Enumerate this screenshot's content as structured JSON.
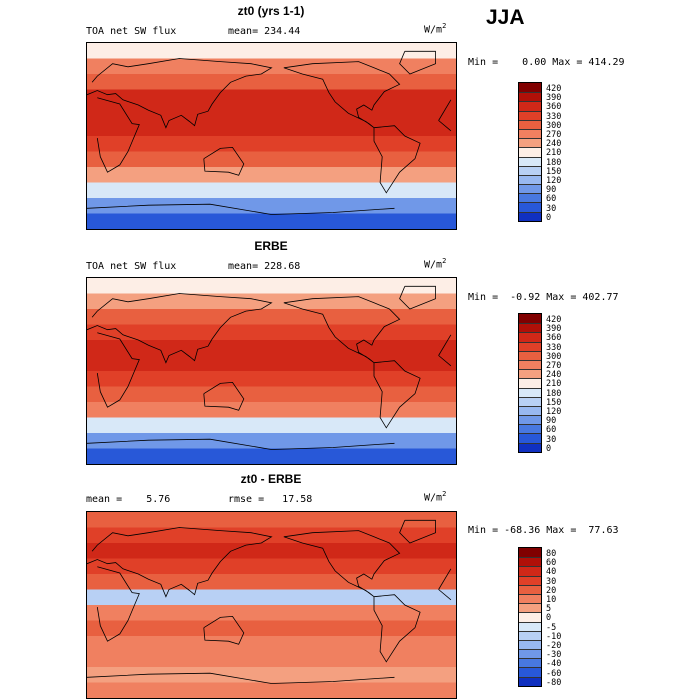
{
  "page_title": "JJA",
  "colors": {
    "scale_positive": [
      "#f8d8c8",
      "#f8c0a8",
      "#f4a080",
      "#f08060",
      "#e86040",
      "#e04028",
      "#d02818",
      "#b01008",
      "#800000"
    ],
    "scale_neutral": "#fdeee6",
    "scale_negative": [
      "#d8e8f8",
      "#b8d0f4",
      "#98b8f0",
      "#7098e8",
      "#4878e0",
      "#2858d8",
      "#1030c0",
      "#001098"
    ],
    "land_outline": "#000000"
  },
  "chart_data": [
    {
      "type": "heatmap",
      "title": "zt0 (yrs 1-1)",
      "variable": "TOA net SW flux",
      "stat_text": "mean= 234.44",
      "units": "W/m",
      "units_exp": "2",
      "min_max_text": "Min =    0.00 Max = 414.29",
      "levels": [
        "420",
        "390",
        "360",
        "330",
        "300",
        "270",
        "240",
        "210",
        "180",
        "150",
        "120",
        "90",
        "60",
        "30",
        "0"
      ],
      "bands": [
        {
          "lat": 90,
          "value": 200
        },
        {
          "lat": 75,
          "value": 240
        },
        {
          "lat": 60,
          "value": 290
        },
        {
          "lat": 45,
          "value": 330
        },
        {
          "lat": 30,
          "value": 350
        },
        {
          "lat": 15,
          "value": 330
        },
        {
          "lat": 0,
          "value": 300
        },
        {
          "lat": -15,
          "value": 280
        },
        {
          "lat": -30,
          "value": 230
        },
        {
          "lat": -45,
          "value": 150
        },
        {
          "lat": -60,
          "value": 60
        },
        {
          "lat": -75,
          "value": 10
        },
        {
          "lat": -90,
          "value": 0
        }
      ]
    },
    {
      "type": "heatmap",
      "title": "ERBE",
      "variable": "TOA net SW flux",
      "stat_text": "mean= 228.68",
      "units": "W/m",
      "units_exp": "2",
      "min_max_text": "Min =  -0.92 Max = 402.77",
      "levels": [
        "420",
        "390",
        "360",
        "330",
        "300",
        "270",
        "240",
        "210",
        "180",
        "150",
        "120",
        "90",
        "60",
        "30",
        "0"
      ],
      "bands": [
        {
          "lat": 90,
          "value": 190
        },
        {
          "lat": 75,
          "value": 230
        },
        {
          "lat": 60,
          "value": 280
        },
        {
          "lat": 45,
          "value": 320
        },
        {
          "lat": 30,
          "value": 340
        },
        {
          "lat": 15,
          "value": 345
        },
        {
          "lat": 0,
          "value": 310
        },
        {
          "lat": -15,
          "value": 290
        },
        {
          "lat": -30,
          "value": 240
        },
        {
          "lat": -45,
          "value": 160
        },
        {
          "lat": -60,
          "value": 70
        },
        {
          "lat": -75,
          "value": 15
        },
        {
          "lat": -90,
          "value": 0
        }
      ]
    },
    {
      "type": "heatmap",
      "title": "zt0 - ERBE",
      "stat_text": "mean =    5.76",
      "stat_text_2": "rmse =   17.58",
      "units": "W/m",
      "units_exp": "2",
      "min_max_text": "Min = -68.36 Max =  77.63",
      "levels": [
        "80",
        "60",
        "40",
        "30",
        "20",
        "10",
        "5",
        "0",
        "-5",
        "-10",
        "-20",
        "-30",
        "-40",
        "-60",
        "-80"
      ],
      "bands": [
        {
          "lat": 90,
          "value": 10
        },
        {
          "lat": 75,
          "value": 25
        },
        {
          "lat": 60,
          "value": 30
        },
        {
          "lat": 45,
          "value": 20
        },
        {
          "lat": 30,
          "value": 15
        },
        {
          "lat": 15,
          "value": -15
        },
        {
          "lat": 0,
          "value": 5
        },
        {
          "lat": -15,
          "value": 10
        },
        {
          "lat": -30,
          "value": 5
        },
        {
          "lat": -45,
          "value": 5
        },
        {
          "lat": -60,
          "value": 0
        },
        {
          "lat": -75,
          "value": 5
        },
        {
          "lat": -90,
          "value": 0
        }
      ]
    }
  ]
}
